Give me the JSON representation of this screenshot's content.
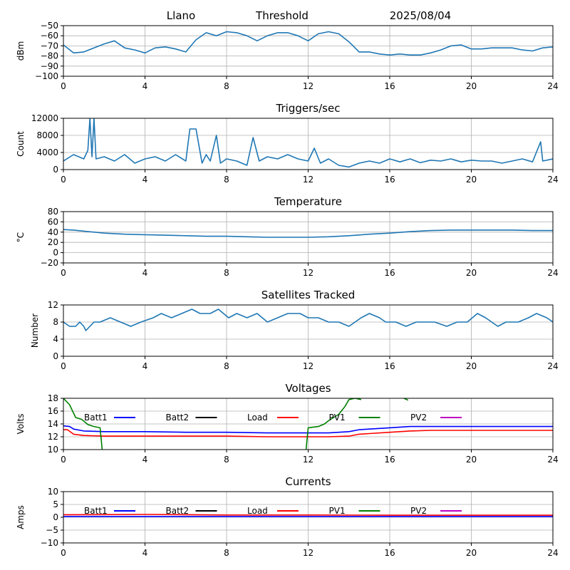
{
  "header": {
    "site": "Llano",
    "mode": "Threshold",
    "date": "2025/08/04"
  },
  "colors": {
    "series": "#1f77b4",
    "grid": "#b0b0b0",
    "batt1": "#0000ff",
    "batt2": "#000000",
    "load": "#ff0000",
    "pv1": "#008000",
    "pv2": "#bf00bf"
  },
  "chart_data": [
    {
      "id": "signal",
      "type": "line",
      "title": "",
      "xlabel": "",
      "ylabel": "dBm",
      "xlim": [
        0,
        24
      ],
      "ylim": [
        -100,
        -50
      ],
      "xticks": [
        "0",
        "4",
        "8",
        "12",
        "16",
        "20",
        "24"
      ],
      "yticks": [
        "−50",
        "−60",
        "−70",
        "−80",
        "−90",
        "−100"
      ],
      "grid": true,
      "series": [
        {
          "x": [
            0,
            0.5,
            1,
            1.5,
            2,
            2.5,
            3,
            3.5,
            4,
            4.5,
            5,
            5.5,
            6,
            6.5,
            7,
            7.5,
            8,
            8.5,
            9,
            9.5,
            10,
            10.5,
            11,
            11.5,
            12,
            12.5,
            13,
            13.5,
            14,
            14.5,
            15,
            15.5,
            16,
            16.5,
            17,
            17.5,
            18,
            18.5,
            19,
            19.5,
            20,
            20.5,
            21,
            21.5,
            22,
            22.5,
            23,
            23.5,
            24
          ],
          "y": [
            -69,
            -77,
            -76,
            -72,
            -68,
            -65,
            -72,
            -74,
            -77,
            -72,
            -71,
            -73,
            -76,
            -64,
            -57,
            -60,
            -56,
            -57,
            -60,
            -65,
            -60,
            -57,
            -57,
            -60,
            -65,
            -58,
            -56,
            -58,
            -66,
            -76,
            -76,
            -78,
            -79,
            -78,
            -79,
            -79,
            -77,
            -74,
            -70,
            -69,
            -73,
            -73,
            -72,
            -72,
            -72,
            -74,
            -75,
            -72,
            -71
          ]
        }
      ]
    },
    {
      "id": "triggers",
      "type": "line",
      "title": "Triggers/sec",
      "xlabel": "",
      "ylabel": "Count",
      "xlim": [
        0,
        24
      ],
      "ylim": [
        0,
        12000
      ],
      "xticks": [
        "0",
        "4",
        "8",
        "12",
        "16",
        "20",
        "24"
      ],
      "yticks": [
        "12000",
        "8000",
        "4000",
        "0"
      ],
      "grid": true,
      "series": [
        {
          "x": [
            0,
            0.5,
            1,
            1.2,
            1.3,
            1.4,
            1.5,
            1.6,
            2,
            2.5,
            3,
            3.5,
            4,
            4.5,
            5,
            5.5,
            6,
            6.2,
            6.5,
            6.8,
            7,
            7.2,
            7.5,
            7.7,
            8,
            8.5,
            9,
            9.3,
            9.6,
            10,
            10.5,
            11,
            11.5,
            12,
            12.3,
            12.6,
            13,
            13.5,
            14,
            14.5,
            15,
            15.5,
            16,
            16.5,
            17,
            17.5,
            18,
            18.5,
            19,
            19.5,
            20,
            20.5,
            21,
            21.5,
            22,
            22.5,
            23,
            23.4,
            23.5,
            24
          ],
          "y": [
            2000,
            3500,
            2500,
            4500,
            12000,
            3000,
            12000,
            2500,
            3000,
            2000,
            3500,
            1500,
            2500,
            3000,
            2000,
            3500,
            2000,
            9500,
            9500,
            1500,
            3500,
            2000,
            8000,
            1500,
            2500,
            2000,
            1000,
            7500,
            2000,
            3000,
            2500,
            3500,
            2500,
            2000,
            5000,
            1500,
            2500,
            1000,
            600,
            1500,
            2000,
            1500,
            2500,
            1800,
            2500,
            1600,
            2200,
            2000,
            2500,
            1800,
            2200,
            2000,
            2000,
            1500,
            2000,
            2500,
            1800,
            6500,
            2000,
            2500
          ]
        }
      ]
    },
    {
      "id": "temperature",
      "type": "line",
      "title": "Temperature",
      "xlabel": "",
      "ylabel": "°C",
      "xlim": [
        0,
        24
      ],
      "ylim": [
        -20,
        80
      ],
      "xticks": [
        "0",
        "4",
        "8",
        "12",
        "16",
        "20",
        "24"
      ],
      "yticks": [
        "80",
        "60",
        "40",
        "20",
        "0",
        "−20"
      ],
      "grid": true,
      "series": [
        {
          "x": [
            0,
            0.5,
            1,
            2,
            3,
            4,
            5,
            6,
            7,
            8,
            9,
            10,
            11,
            12,
            13,
            14,
            15,
            16,
            17,
            18,
            19,
            20,
            21,
            22,
            23,
            24
          ],
          "y": [
            45,
            44,
            42,
            38,
            36,
            35,
            34,
            33,
            32,
            32,
            31,
            30,
            30,
            30,
            31,
            33,
            36,
            38,
            41,
            43,
            44,
            44,
            44,
            44,
            43,
            43
          ]
        }
      ]
    },
    {
      "id": "satellites",
      "type": "line",
      "title": "Satellites Tracked",
      "xlabel": "",
      "ylabel": "Number",
      "xlim": [
        0,
        24
      ],
      "ylim": [
        0,
        12
      ],
      "xticks": [
        "0",
        "4",
        "8",
        "12",
        "16",
        "20",
        "24"
      ],
      "yticks": [
        "12",
        "8",
        "4",
        "0"
      ],
      "grid": true,
      "series": [
        {
          "x": [
            0,
            0.3,
            0.6,
            0.8,
            1,
            1.1,
            1.3,
            1.5,
            1.8,
            2.3,
            2.8,
            3.3,
            3.8,
            4.4,
            4.8,
            5.3,
            5.8,
            6.3,
            6.7,
            7.2,
            7.6,
            8.1,
            8.5,
            9,
            9.5,
            10,
            10.5,
            11,
            11.6,
            12,
            12.5,
            13,
            13.5,
            14,
            14.6,
            15,
            15.5,
            15.8,
            16.3,
            16.8,
            17.3,
            17.7,
            18.2,
            18.8,
            19.3,
            19.8,
            20.3,
            20.7,
            21.3,
            21.7,
            22.3,
            22.8,
            23.2,
            23.7,
            24
          ],
          "y": [
            8,
            7,
            7,
            8,
            7,
            6,
            7,
            8,
            8,
            9,
            8,
            7,
            8,
            9,
            10,
            9,
            10,
            11,
            10,
            10,
            11,
            9,
            10,
            9,
            10,
            8,
            9,
            10,
            10,
            9,
            9,
            8,
            8,
            7,
            9,
            10,
            9,
            8,
            8,
            7,
            8,
            8,
            8,
            7,
            8,
            8,
            10,
            9,
            7,
            8,
            8,
            9,
            10,
            9,
            8
          ]
        }
      ]
    },
    {
      "id": "voltages",
      "type": "line",
      "title": "Voltages",
      "xlabel": "",
      "ylabel": "Volts",
      "xlim": [
        0,
        24
      ],
      "ylim": [
        10,
        18
      ],
      "xticks": [
        "0",
        "4",
        "8",
        "12",
        "16",
        "20",
        "24"
      ],
      "yticks": [
        "18",
        "16",
        "14",
        "12",
        "10"
      ],
      "grid": true,
      "legend": [
        {
          "name": "Batt1",
          "key": "batt1"
        },
        {
          "name": "Batt2",
          "key": "batt2"
        },
        {
          "name": "Load",
          "key": "load"
        },
        {
          "name": "PV1",
          "key": "pv1"
        },
        {
          "name": "PV2",
          "key": "pv2"
        }
      ],
      "series": [
        {
          "name": "Batt1",
          "key": "batt1",
          "x": [
            0,
            0.3,
            0.5,
            1,
            2,
            4,
            6,
            8,
            10,
            12,
            13,
            14,
            14.5,
            15,
            16,
            17,
            18,
            20,
            22,
            24
          ],
          "y": [
            13.7,
            13.6,
            13.2,
            12.9,
            12.8,
            12.8,
            12.7,
            12.7,
            12.6,
            12.6,
            12.6,
            12.8,
            13.1,
            13.2,
            13.4,
            13.6,
            13.6,
            13.6,
            13.6,
            13.6
          ]
        },
        {
          "name": "Load",
          "key": "load",
          "x": [
            0,
            0.2,
            0.5,
            1,
            2,
            4,
            6,
            8,
            10,
            12,
            13,
            14,
            14.5,
            15,
            16,
            17,
            18,
            20,
            22,
            24
          ],
          "y": [
            13.1,
            13.1,
            12.4,
            12.2,
            12.1,
            12.1,
            12.1,
            12.1,
            12.0,
            12.0,
            12.0,
            12.1,
            12.4,
            12.5,
            12.7,
            12.9,
            13.0,
            13.0,
            13.0,
            13.0
          ]
        },
        {
          "name": "PV1",
          "key": "pv1",
          "segments": [
            {
              "x": [
                0,
                0.3,
                0.6,
                0.9,
                1.2,
                1.5,
                1.8,
                1.9
              ],
              "y": [
                18,
                17,
                15,
                14.7,
                13.9,
                13.6,
                13.4,
                10
              ]
            },
            {
              "x": [
                11.9,
                12,
                12.5,
                12.8,
                13,
                13.5,
                13.8,
                14,
                14.3,
                14.6
              ],
              "y": [
                10,
                13.4,
                13.6,
                14.0,
                14.5,
                15.5,
                16.7,
                17.8,
                18,
                17.8
              ]
            },
            {
              "x": [
                16.7,
                16.9
              ],
              "y": [
                18,
                17.7
              ]
            }
          ]
        }
      ]
    },
    {
      "id": "currents",
      "type": "line",
      "title": "Currents",
      "xlabel": "",
      "ylabel": "Amps",
      "xlim": [
        0,
        24
      ],
      "ylim": [
        -10,
        10
      ],
      "xticks": [
        "0",
        "4",
        "8",
        "12",
        "16",
        "20",
        "24"
      ],
      "yticks": [
        "10",
        "5",
        "0",
        "−5",
        "−10"
      ],
      "grid": true,
      "legend": [
        {
          "name": "Batt1",
          "key": "batt1"
        },
        {
          "name": "Batt2",
          "key": "batt2"
        },
        {
          "name": "Load",
          "key": "load"
        },
        {
          "name": "PV1",
          "key": "pv1"
        },
        {
          "name": "PV2",
          "key": "pv2"
        }
      ],
      "series": [
        {
          "name": "Batt1",
          "key": "batt1",
          "x": [
            0,
            24
          ],
          "y": [
            0.3,
            0.3
          ]
        },
        {
          "name": "Load",
          "key": "load",
          "x": [
            0,
            4,
            8,
            12,
            16,
            20,
            24
          ],
          "y": [
            1.0,
            1.1,
            0.9,
            0.9,
            0.8,
            0.8,
            0.8
          ]
        }
      ]
    }
  ]
}
